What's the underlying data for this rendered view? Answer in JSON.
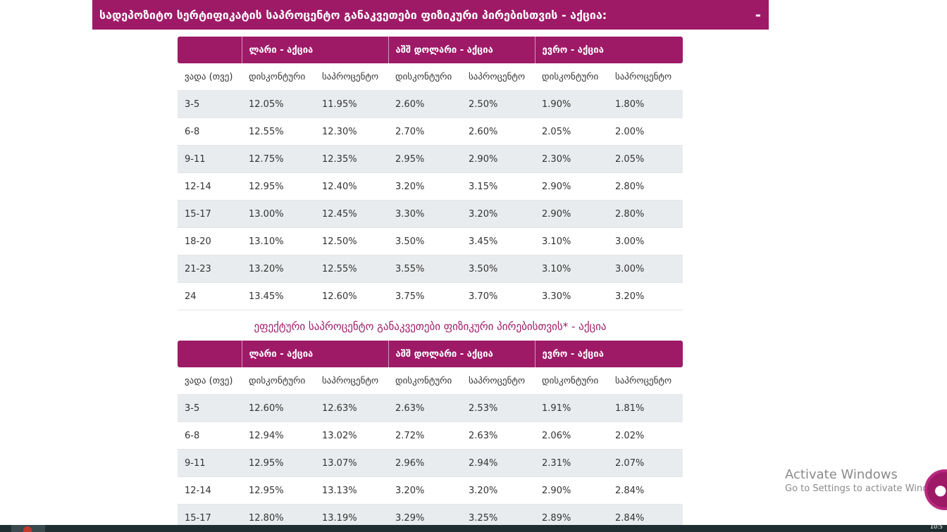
{
  "section": {
    "title": "სადეპოზიტო სერტიფიკატის საპროცენტო განაკვეთები ფიზიკური პირებისთვის - აქცია:",
    "toggle": "-"
  },
  "tables": [
    {
      "currency_headers": [
        "",
        "ლარი  - აქცია",
        "აშშ დოლარი - აქცია",
        "ევრო - აქცია"
      ],
      "sub_headers": [
        "ვადა (თვე)",
        "დისკონტური",
        "საპროცენტო",
        "დისკონტური",
        "საპროცენტო",
        "დისკონტური",
        "საპროცენტო"
      ],
      "rows": [
        [
          "3-5",
          "12.05%",
          "11.95%",
          "2.60%",
          "2.50%",
          "1.90%",
          "1.80%"
        ],
        [
          "6-8",
          "12.55%",
          "12.30%",
          "2.70%",
          "2.60%",
          "2.05%",
          "2.00%"
        ],
        [
          "9-11",
          "12.75%",
          "12.35%",
          "2.95%",
          "2.90%",
          "2.30%",
          "2.05%"
        ],
        [
          "12-14",
          "12.95%",
          "12.40%",
          "3.20%",
          "3.15%",
          "2.90%",
          "2.80%"
        ],
        [
          "15-17",
          "13.00%",
          "12.45%",
          "3.30%",
          "3.20%",
          "2.90%",
          "2.80%"
        ],
        [
          "18-20",
          "13.10%",
          "12.50%",
          "3.50%",
          "3.45%",
          "3.10%",
          "3.00%"
        ],
        [
          "21-23",
          "13.20%",
          "12.55%",
          "3.55%",
          "3.50%",
          "3.10%",
          "3.00%"
        ],
        [
          "24",
          "13.45%",
          "12.60%",
          "3.75%",
          "3.70%",
          "3.30%",
          "3.20%"
        ]
      ]
    },
    {
      "title": "ეფექტური საპროცენტო განაკვეთები ფიზიკური პირებისთვის* - აქცია",
      "currency_headers": [
        "",
        "ლარი - აქცია",
        "აშშ დოლარი - აქცია",
        "ევრო - აქცია"
      ],
      "sub_headers": [
        "ვადა (თვე)",
        "დისკონტური",
        "საპროცენტო",
        "დისკონტური",
        "საპროცენტო",
        "დისკონტური",
        "საპროცენტო"
      ],
      "rows": [
        [
          "3-5",
          "12.60%",
          "12.63%",
          "2.63%",
          "2.53%",
          "1.91%",
          "1.81%"
        ],
        [
          "6-8",
          "12.94%",
          "13.02%",
          "2.72%",
          "2.63%",
          "2.06%",
          "2.02%"
        ],
        [
          "9-11",
          "12.95%",
          "13.07%",
          "2.96%",
          "2.94%",
          "2.31%",
          "2.07%"
        ],
        [
          "12-14",
          "12.95%",
          "13.13%",
          "3.20%",
          "3.20%",
          "2.90%",
          "2.84%"
        ],
        [
          "15-17",
          "12.80%",
          "13.19%",
          "3.29%",
          "3.25%",
          "2.89%",
          "2.84%"
        ]
      ]
    }
  ],
  "watermark": {
    "title": "Activate Windows",
    "subtitle": "Go to Settings to activate Windows."
  },
  "taskbar": {
    "clock": "10:5"
  },
  "colors": {
    "brand": "#9e1a67",
    "row_alt": "#e9ecee",
    "text": "#333333"
  },
  "icons": {
    "chat": "chat-bubble-icon"
  }
}
